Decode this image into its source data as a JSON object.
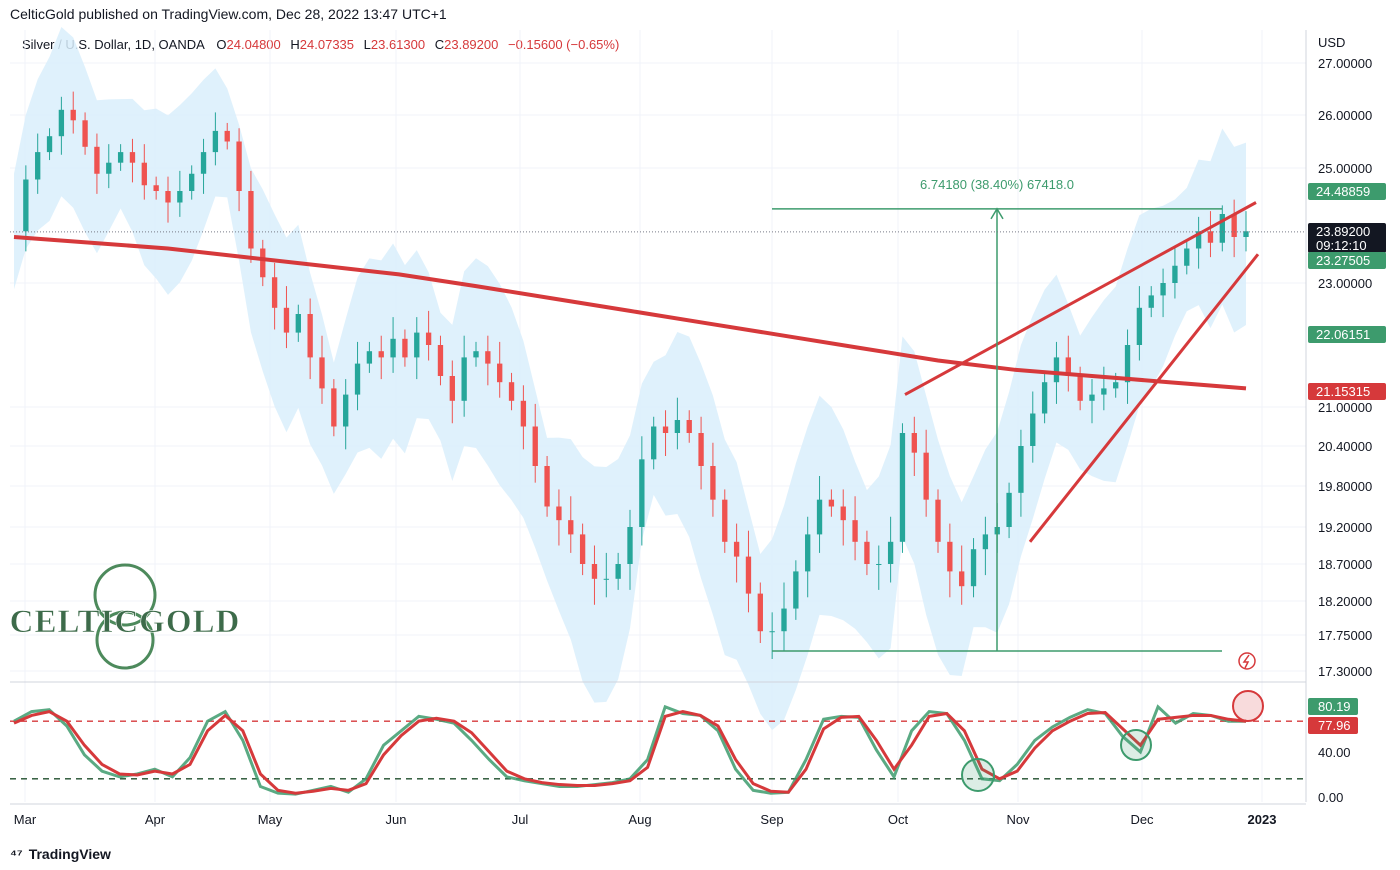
{
  "header": {
    "publisher_line": "CelticGold published on TradingView.com, Dec 28, 2022 13:47 UTC+1"
  },
  "legend": {
    "symbol": "Silver / U.S. Dollar, 1D, OANDA",
    "open_key": "O",
    "open": "24.04800",
    "high_key": "H",
    "high": "24.07335",
    "low_key": "L",
    "low": "23.61300",
    "close_key": "C",
    "close": "23.89200",
    "change": "−0.15600 (−0.65%)"
  },
  "footer": {
    "brand": "TradingView"
  },
  "logo": {
    "text": "CELTICGOLD"
  },
  "colors": {
    "up": "#26a69a",
    "down": "#ef5350",
    "bands_fill": "#d9effb",
    "ma": "#d6393b",
    "measure": "#3d9b6d",
    "stoch_k": "#3d9b6d",
    "stoch_d": "#d6393b"
  },
  "chart_data": [
    {
      "type": "candlestick",
      "title": "Silver / U.S. Dollar, 1D, OANDA",
      "currency_label": "USD",
      "ylim": [
        17.3,
        27.3
      ],
      "y_ticks": [
        "27.00000",
        "26.00000",
        "25.00000",
        "23.00000",
        "21.00000",
        "20.40000",
        "19.80000",
        "19.20000",
        "18.70000",
        "18.20000",
        "17.75000",
        "17.30000"
      ],
      "x_ticks": [
        "Mar",
        "Apr",
        "May",
        "Jun",
        "Jul",
        "Aug",
        "Sep",
        "Oct",
        "Nov",
        "Dec",
        "2023"
      ],
      "price_labels": [
        {
          "value": "24.48859",
          "role": "measure-top"
        },
        {
          "value": "23.89200",
          "sub": "09:12:10",
          "role": "last"
        },
        {
          "value": "23.27505",
          "role": "upper-band"
        },
        {
          "value": "22.06151",
          "role": "mid-band"
        },
        {
          "value": "21.15315",
          "role": "ma200"
        }
      ],
      "measure_annotation": "6.74180 (38.40%) 67418.0",
      "price_path": [
        23.9,
        24.8,
        25.3,
        25.6,
        26.1,
        25.9,
        25.4,
        24.9,
        25.1,
        25.3,
        25.1,
        24.7,
        24.6,
        24.4,
        24.6,
        24.9,
        25.3,
        25.7,
        25.5,
        24.6,
        23.6,
        23.1,
        22.6,
        22.2,
        22.5,
        21.8,
        21.3,
        20.7,
        21.2,
        21.7,
        21.9,
        21.8,
        22.1,
        21.8,
        22.2,
        22.0,
        21.5,
        21.1,
        21.8,
        21.9,
        21.7,
        21.4,
        21.1,
        20.7,
        20.1,
        19.5,
        19.3,
        19.1,
        18.7,
        18.5,
        18.5,
        18.7,
        19.2,
        20.2,
        20.7,
        20.6,
        20.8,
        20.6,
        20.1,
        19.6,
        19.0,
        18.8,
        18.3,
        17.8,
        17.8,
        18.1,
        18.6,
        19.1,
        19.6,
        19.5,
        19.3,
        19.0,
        18.7,
        18.7,
        19.0,
        20.6,
        20.3,
        19.6,
        19.0,
        18.6,
        18.4,
        18.9,
        19.1,
        19.2,
        19.7,
        20.4,
        20.9,
        21.4,
        21.8,
        21.5,
        21.1,
        21.2,
        21.3,
        21.4,
        22.0,
        22.6,
        22.8,
        23.0,
        23.3,
        23.6,
        23.9,
        23.7,
        24.2,
        23.8,
        23.9
      ],
      "ma200_path": [
        23.8,
        23.7,
        23.6,
        23.45,
        23.3,
        23.15,
        22.95,
        22.75,
        22.55,
        22.35,
        22.15,
        21.95,
        21.75,
        21.6,
        21.5,
        21.4,
        21.3
      ],
      "wedge": {
        "upper": [
          21.2,
          24.4
        ],
        "lower": [
          19.0,
          23.5
        ]
      },
      "low_mark": 17.55,
      "measure_top": 24.29
    },
    {
      "type": "line",
      "title": "Stochastic",
      "ylim": [
        0,
        100
      ],
      "y_ticks": [
        "40.00",
        "0.00"
      ],
      "value_labels": [
        "80.19",
        "77.96"
      ],
      "overbought": 80,
      "oversold": 20,
      "series": [
        {
          "name": "",
          "color": "#3d9b6d",
          "values": [
            80,
            90,
            92,
            75,
            45,
            28,
            22,
            25,
            30,
            22,
            42,
            80,
            90,
            60,
            12,
            5,
            4,
            8,
            12,
            6,
            20,
            55,
            70,
            85,
            82,
            78,
            60,
            40,
            22,
            18,
            15,
            12,
            12,
            14,
            16,
            20,
            40,
            95,
            88,
            86,
            70,
            30,
            8,
            5,
            6,
            40,
            82,
            85,
            84,
            50,
            22,
            70,
            90,
            88,
            60,
            20,
            18,
            35,
            60,
            74,
            84,
            92,
            88,
            64,
            48,
            95,
            78,
            88,
            86,
            80,
            80
          ]
        },
        {
          "name": "",
          "color": "#d6393b",
          "values": [
            78,
            86,
            90,
            80,
            55,
            35,
            25,
            24,
            28,
            25,
            35,
            70,
            86,
            70,
            25,
            8,
            5,
            7,
            10,
            8,
            15,
            45,
            65,
            80,
            83,
            80,
            68,
            48,
            28,
            20,
            16,
            14,
            13,
            13,
            15,
            18,
            32,
            85,
            90,
            86,
            75,
            40,
            15,
            7,
            6,
            30,
            72,
            84,
            85,
            60,
            30,
            55,
            85,
            88,
            70,
            30,
            20,
            28,
            52,
            70,
            80,
            88,
            89,
            72,
            55,
            82,
            84,
            86,
            86,
            82,
            80
          ]
        }
      ]
    }
  ]
}
